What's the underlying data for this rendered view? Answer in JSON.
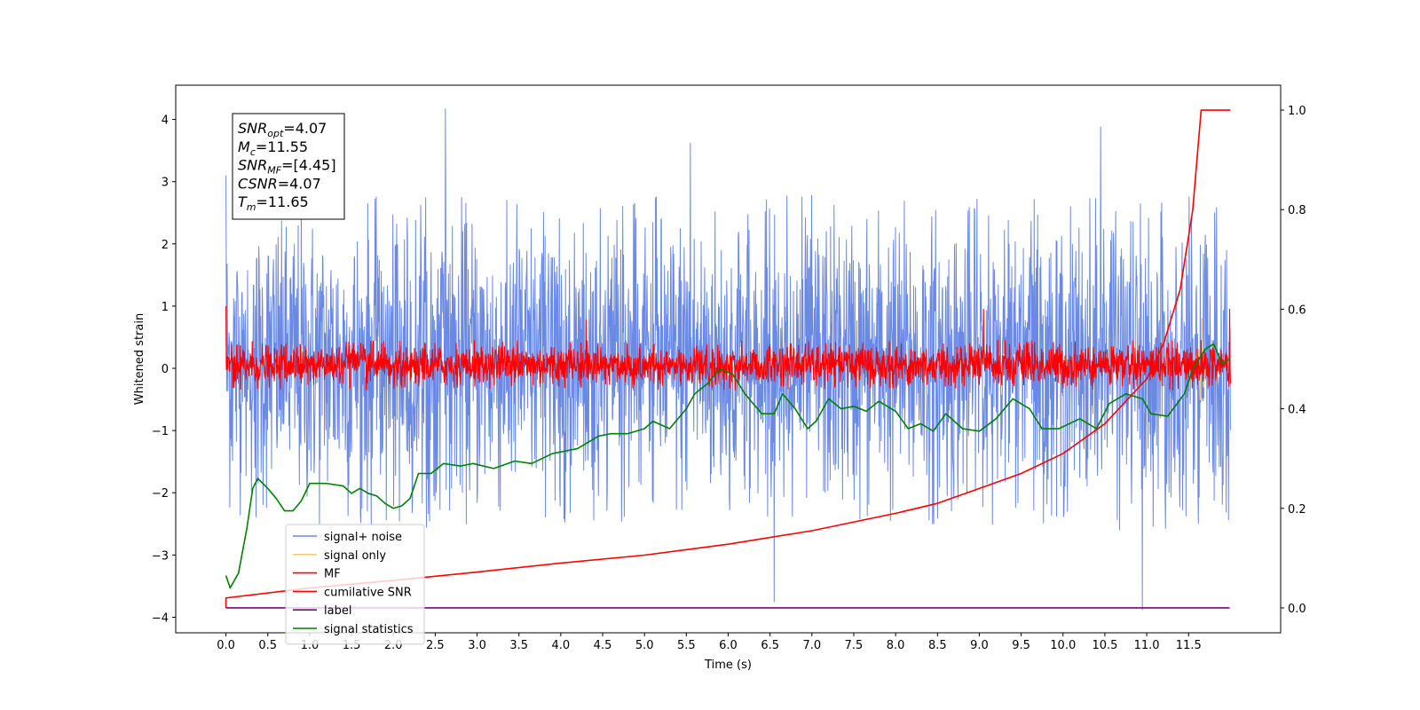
{
  "chart_data": {
    "type": "line",
    "title": "",
    "xlabel": "Time (s)",
    "ylabel": "Whitened strain",
    "xlim": [
      -0.6,
      12.6
    ],
    "ylim": [
      -4.25,
      4.55
    ],
    "y2lim": [
      -0.05,
      1.05
    ],
    "x_ticks": [
      0.0,
      0.5,
      1.0,
      1.5,
      2.0,
      2.5,
      3.0,
      3.5,
      4.0,
      4.5,
      5.0,
      5.5,
      6.0,
      6.5,
      7.0,
      7.5,
      8.0,
      8.5,
      9.0,
      9.5,
      10.0,
      10.5,
      11.0,
      11.5
    ],
    "x_tick_labels": [
      "0.0",
      "0.5",
      "1.0",
      "1.5",
      "2.0",
      "2.5",
      "3.0",
      "3.5",
      "4.0",
      "4.5",
      "5.0",
      "5.5",
      "6.0",
      "6.5",
      "7.0",
      "7.5",
      "8.0",
      "8.5",
      "9.0",
      "9.5",
      "10.0",
      "10.5",
      "11.0",
      "11.5"
    ],
    "y_ticks": [
      -4,
      -3,
      -2,
      -1,
      0,
      1,
      2,
      3,
      4
    ],
    "y_tick_labels": [
      "−4",
      "−3",
      "−2",
      "−1",
      "0",
      "1",
      "2",
      "3",
      "4"
    ],
    "y2_ticks": [
      0.0,
      0.2,
      0.4,
      0.6,
      0.8,
      1.0
    ],
    "y2_tick_labels": [
      "0.0",
      "0.2",
      "0.4",
      "0.6",
      "0.8",
      "1.0"
    ],
    "grid": false,
    "legend_position": "lower-left",
    "colors": {
      "signal_noise": "#6a89e5",
      "signal_only": "#f5c97a",
      "mf": "#ff0000",
      "cumulative_snr": "#ff0000",
      "label": "#800080",
      "signal_statistics": "#008000"
    },
    "series": [
      {
        "name": "signal+ noise",
        "axis": "left",
        "style": "noise",
        "x_range": [
          0.0,
          12.0
        ],
        "envelope": [
          -2.6,
          2.8
        ],
        "peaks": [
          [
            0.0,
            3.1
          ],
          [
            2.62,
            4.17
          ],
          [
            5.55,
            3.62
          ],
          [
            10.45,
            3.88
          ],
          [
            10.95,
            -3.88
          ],
          [
            6.55,
            -3.75
          ]
        ]
      },
      {
        "name": "signal only",
        "axis": "left",
        "style": "burst",
        "points": [
          [
            11.55,
            0.0
          ],
          [
            11.62,
            0.3
          ],
          [
            11.64,
            -0.5
          ],
          [
            11.66,
            0.8
          ],
          [
            11.68,
            -0.3
          ],
          [
            11.7,
            0.0
          ]
        ]
      },
      {
        "name": "MF",
        "axis": "left",
        "style": "noise",
        "x_range": [
          0.0,
          12.0
        ],
        "envelope": [
          -0.35,
          0.45
        ],
        "peaks": [
          [
            0.0,
            1.0
          ],
          [
            4.3,
            0.78
          ],
          [
            9.05,
            0.95
          ],
          [
            11.99,
            0.95
          ]
        ]
      },
      {
        "name": "cumilative SNR",
        "axis": "right",
        "style": "line",
        "points": [
          [
            0.0,
            0.0
          ],
          [
            0.0,
            0.02
          ],
          [
            1.0,
            0.04
          ],
          [
            2.0,
            0.055
          ],
          [
            3.0,
            0.072
          ],
          [
            4.0,
            0.09
          ],
          [
            5.0,
            0.106
          ],
          [
            6.0,
            0.128
          ],
          [
            7.0,
            0.155
          ],
          [
            8.0,
            0.19
          ],
          [
            8.5,
            0.21
          ],
          [
            9.0,
            0.24
          ],
          [
            9.5,
            0.27
          ],
          [
            10.0,
            0.31
          ],
          [
            10.5,
            0.37
          ],
          [
            11.0,
            0.46
          ],
          [
            11.2,
            0.53
          ],
          [
            11.4,
            0.64
          ],
          [
            11.55,
            0.8
          ],
          [
            11.65,
            1.0
          ],
          [
            12.0,
            1.0
          ]
        ]
      },
      {
        "name": "label",
        "axis": "right",
        "style": "line",
        "points": [
          [
            0.0,
            0.0
          ],
          [
            11.99,
            0.0
          ]
        ]
      },
      {
        "name": "signal statistics",
        "axis": "right",
        "style": "line",
        "points": [
          [
            0.0,
            0.065
          ],
          [
            0.05,
            0.04
          ],
          [
            0.15,
            0.07
          ],
          [
            0.25,
            0.16
          ],
          [
            0.32,
            0.24
          ],
          [
            0.38,
            0.26
          ],
          [
            0.5,
            0.24
          ],
          [
            0.6,
            0.22
          ],
          [
            0.7,
            0.195
          ],
          [
            0.8,
            0.195
          ],
          [
            0.9,
            0.215
          ],
          [
            1.0,
            0.25
          ],
          [
            1.2,
            0.25
          ],
          [
            1.4,
            0.245
          ],
          [
            1.5,
            0.23
          ],
          [
            1.6,
            0.24
          ],
          [
            1.7,
            0.23
          ],
          [
            1.8,
            0.225
          ],
          [
            1.9,
            0.21
          ],
          [
            2.0,
            0.2
          ],
          [
            2.1,
            0.205
          ],
          [
            2.2,
            0.22
          ],
          [
            2.3,
            0.27
          ],
          [
            2.45,
            0.27
          ],
          [
            2.6,
            0.29
          ],
          [
            2.8,
            0.285
          ],
          [
            2.95,
            0.29
          ],
          [
            3.2,
            0.28
          ],
          [
            3.45,
            0.295
          ],
          [
            3.65,
            0.29
          ],
          [
            3.9,
            0.31
          ],
          [
            4.2,
            0.32
          ],
          [
            4.45,
            0.345
          ],
          [
            4.6,
            0.35
          ],
          [
            4.8,
            0.35
          ],
          [
            5.0,
            0.36
          ],
          [
            5.1,
            0.375
          ],
          [
            5.3,
            0.36
          ],
          [
            5.5,
            0.4
          ],
          [
            5.6,
            0.43
          ],
          [
            5.75,
            0.45
          ],
          [
            5.9,
            0.48
          ],
          [
            6.05,
            0.47
          ],
          [
            6.2,
            0.43
          ],
          [
            6.4,
            0.39
          ],
          [
            6.55,
            0.39
          ],
          [
            6.65,
            0.43
          ],
          [
            6.8,
            0.4
          ],
          [
            6.95,
            0.36
          ],
          [
            7.05,
            0.375
          ],
          [
            7.2,
            0.42
          ],
          [
            7.35,
            0.4
          ],
          [
            7.5,
            0.405
          ],
          [
            7.65,
            0.395
          ],
          [
            7.8,
            0.415
          ],
          [
            8.0,
            0.395
          ],
          [
            8.15,
            0.36
          ],
          [
            8.3,
            0.37
          ],
          [
            8.45,
            0.355
          ],
          [
            8.6,
            0.39
          ],
          [
            8.8,
            0.36
          ],
          [
            9.0,
            0.355
          ],
          [
            9.2,
            0.38
          ],
          [
            9.4,
            0.42
          ],
          [
            9.6,
            0.4
          ],
          [
            9.75,
            0.36
          ],
          [
            9.95,
            0.36
          ],
          [
            10.2,
            0.38
          ],
          [
            10.4,
            0.36
          ],
          [
            10.55,
            0.41
          ],
          [
            10.75,
            0.43
          ],
          [
            10.95,
            0.42
          ],
          [
            11.05,
            0.39
          ],
          [
            11.25,
            0.385
          ],
          [
            11.45,
            0.43
          ],
          [
            11.55,
            0.48
          ],
          [
            11.7,
            0.52
          ],
          [
            11.8,
            0.53
          ],
          [
            11.9,
            0.49
          ],
          [
            11.99,
            0.5
          ]
        ]
      }
    ],
    "annotation": {
      "lines": [
        {
          "sym": "SNR",
          "sub": "opt",
          "value": "=4.07"
        },
        {
          "sym": "M",
          "sub": "c",
          "value": "=11.55"
        },
        {
          "sym": "SNR",
          "sub": "MF",
          "value": "=[4.45]"
        },
        {
          "sym": "CSNR",
          "sub": "",
          "value": "=4.07"
        },
        {
          "sym": "T",
          "sub": "m",
          "value": "=11.65"
        }
      ]
    },
    "legend": [
      {
        "label": "signal+ noise",
        "color": "#6a89e5"
      },
      {
        "label": "signal only",
        "color": "#f5c97a"
      },
      {
        "label": "MF",
        "color": "#ff0000"
      },
      {
        "label": "cumilative SNR",
        "color": "#ff0000"
      },
      {
        "label": "label",
        "color": "#800080"
      },
      {
        "label": "signal statistics",
        "color": "#008000"
      }
    ]
  }
}
